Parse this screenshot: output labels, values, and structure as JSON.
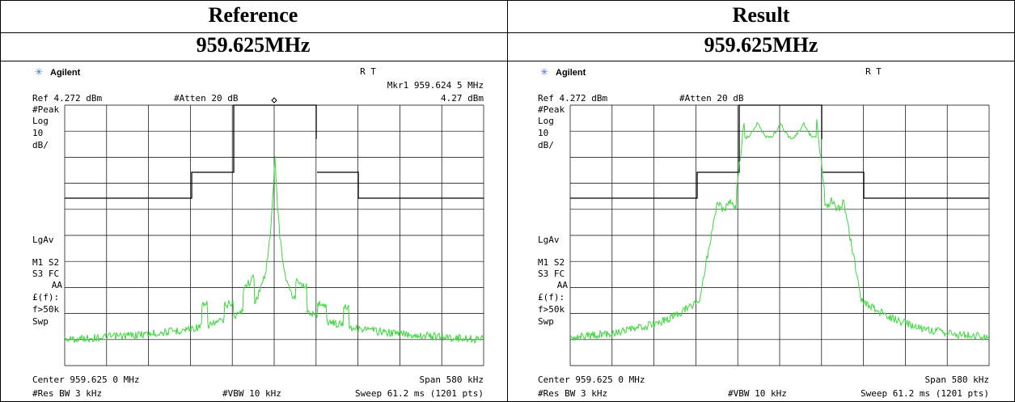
{
  "header": {
    "columns": [
      "Reference",
      "Result"
    ]
  },
  "frequency": [
    "959.625MHz",
    "959.625MHz"
  ],
  "panels": [
    {
      "brand": "Agilent",
      "status": "R T",
      "marker": "Mkr1  959.624 5 MHz",
      "ref": "Ref 4.272 dBm",
      "atten": "#Atten 20 dB",
      "marker_level": "4.27 dBm",
      "side": [
        "#Peak",
        "Log",
        "10",
        "dB/",
        "LgAv",
        "M1  S2",
        "S3  FC",
        "AA",
        "£(f):",
        "f>50k",
        "Swp"
      ],
      "center": "Center 959.625 0 MHz",
      "span": "Span 580 kHz",
      "rbw": "#Res BW 3 kHz",
      "vbw": "#VBW 10 kHz",
      "sweep": "Sweep 61.2 ms (1201 pts)"
    },
    {
      "brand": "Agilent",
      "status": "R T",
      "ref": "Ref 4.272 dBm",
      "atten": "#Atten 20 dB",
      "side": [
        "#Peak",
        "Log",
        "10",
        "dB/",
        "LgAv",
        "M1  S2",
        "S3  FC",
        "AA",
        "£(f):",
        "f>50k",
        "Swp"
      ],
      "center": "Center 959.625 0 MHz",
      "span": "Span 580 kHz",
      "rbw": "#Res BW 3 kHz",
      "vbw": "#VBW 10 kHz",
      "sweep": "Sweep 61.2 ms (1201 pts)"
    }
  ]
}
